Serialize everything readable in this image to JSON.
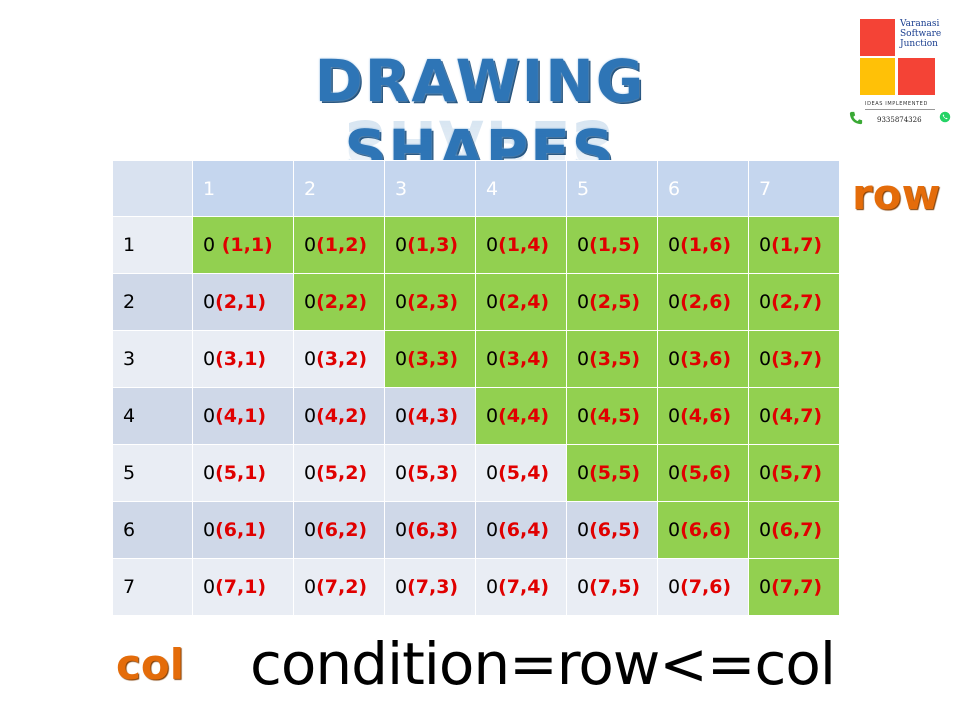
{
  "title": "DRAWING SHAPES",
  "logo": {
    "brand_line1": "Varanasi",
    "brand_line2": "Software",
    "brand_line3": "Junction",
    "tagline": "IDEAS IMPLEMENTED",
    "phone": "9335874326",
    "colors": {
      "red": "#f44336",
      "yellow": "#ffc107"
    },
    "icons": [
      "phone-icon",
      "whatsapp-icon"
    ]
  },
  "row_label": "row",
  "col_label": "col",
  "condition": "condition=row<=col",
  "colors": {
    "highlight": "#92d050",
    "coord_text": "#e00000",
    "label_orange": "#e46c0a",
    "title_blue": "#2e75b6"
  },
  "table": {
    "column_headers": [
      "1",
      "2",
      "3",
      "4",
      "5",
      "6",
      "7"
    ],
    "rows": [
      {
        "label": "1",
        "cells": [
          {
            "zero": "0",
            "coord": " (1,1)",
            "green": true
          },
          {
            "zero": "0",
            "coord": "(1,2)",
            "green": true
          },
          {
            "zero": "0",
            "coord": "(1,3)",
            "green": true
          },
          {
            "zero": "0",
            "coord": "(1,4)",
            "green": true
          },
          {
            "zero": "0",
            "coord": "(1,5)",
            "green": true
          },
          {
            "zero": "0",
            "coord": "(1,6)",
            "green": true
          },
          {
            "zero": "0",
            "coord": "(1,7)",
            "green": true
          }
        ]
      },
      {
        "label": "2",
        "cells": [
          {
            "zero": "0",
            "coord": "(2,1)",
            "green": false
          },
          {
            "zero": "0",
            "coord": "(2,2)",
            "green": true
          },
          {
            "zero": "0",
            "coord": "(2,3)",
            "green": true
          },
          {
            "zero": "0",
            "coord": "(2,4)",
            "green": true
          },
          {
            "zero": "0",
            "coord": "(2,5)",
            "green": true
          },
          {
            "zero": "0",
            "coord": "(2,6)",
            "green": true
          },
          {
            "zero": "0",
            "coord": "(2,7)",
            "green": true
          }
        ]
      },
      {
        "label": "3",
        "cells": [
          {
            "zero": "0",
            "coord": "(3,1)",
            "green": false
          },
          {
            "zero": "0",
            "coord": "(3,2)",
            "green": false
          },
          {
            "zero": "0",
            "coord": "(3,3)",
            "green": true
          },
          {
            "zero": "0",
            "coord": "(3,4)",
            "green": true
          },
          {
            "zero": "0",
            "coord": "(3,5)",
            "green": true
          },
          {
            "zero": "0",
            "coord": "(3,6)",
            "green": true
          },
          {
            "zero": "0",
            "coord": "(3,7)",
            "green": true
          }
        ]
      },
      {
        "label": "4",
        "cells": [
          {
            "zero": "0",
            "coord": "(4,1)",
            "green": false
          },
          {
            "zero": "0",
            "coord": "(4,2)",
            "green": false
          },
          {
            "zero": "0",
            "coord": "(4,3)",
            "green": false
          },
          {
            "zero": "0",
            "coord": "(4,4)",
            "green": true
          },
          {
            "zero": "0",
            "coord": "(4,5)",
            "green": true
          },
          {
            "zero": "0",
            "coord": "(4,6)",
            "green": true
          },
          {
            "zero": "0",
            "coord": "(4,7)",
            "green": true
          }
        ]
      },
      {
        "label": "5",
        "cells": [
          {
            "zero": "0",
            "coord": "(5,1)",
            "green": false
          },
          {
            "zero": "0",
            "coord": "(5,2)",
            "green": false
          },
          {
            "zero": "0",
            "coord": "(5,3)",
            "green": false
          },
          {
            "zero": "0",
            "coord": "(5,4)",
            "green": false
          },
          {
            "zero": "0",
            "coord": "(5,5)",
            "green": true
          },
          {
            "zero": "0",
            "coord": "(5,6)",
            "green": true
          },
          {
            "zero": "0",
            "coord": "(5,7)",
            "green": true
          }
        ]
      },
      {
        "label": "6",
        "cells": [
          {
            "zero": "0",
            "coord": "(6,1)",
            "green": false
          },
          {
            "zero": "0",
            "coord": "(6,2)",
            "green": false
          },
          {
            "zero": "0",
            "coord": "(6,3)",
            "green": false
          },
          {
            "zero": "0",
            "coord": "(6,4)",
            "green": false
          },
          {
            "zero": "0",
            "coord": "(6,5)",
            "green": false
          },
          {
            "zero": "0",
            "coord": "(6,6)",
            "green": true
          },
          {
            "zero": "0",
            "coord": "(6,7)",
            "green": true
          }
        ]
      },
      {
        "label": "7",
        "cells": [
          {
            "zero": "0",
            "coord": "(7,1)",
            "green": false
          },
          {
            "zero": "0",
            "coord": "(7,2)",
            "green": false
          },
          {
            "zero": "0",
            "coord": "(7,3)",
            "green": false
          },
          {
            "zero": "0",
            "coord": "(7,4)",
            "green": false
          },
          {
            "zero": "0",
            "coord": "(7,5)",
            "green": false
          },
          {
            "zero": "0",
            "coord": "(7,6)",
            "green": false
          },
          {
            "zero": "0",
            "coord": "(7,7)",
            "green": true
          }
        ]
      }
    ]
  }
}
